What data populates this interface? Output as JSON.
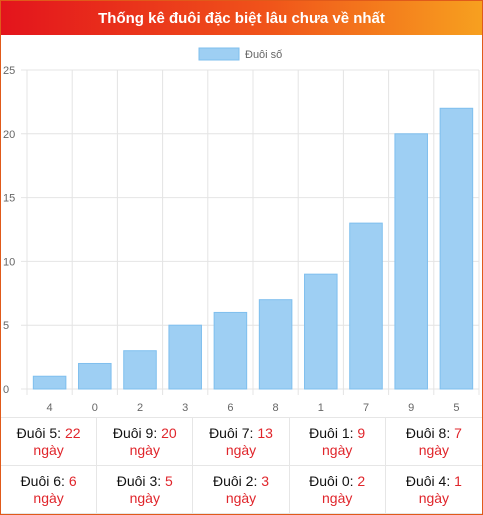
{
  "header": {
    "title": "Thống kê đuôi đặc biệt lâu chưa về nhất"
  },
  "colors": {
    "bar": "#9ecff3",
    "bar_border": "#7fbfee",
    "accent_red": "#e0252b"
  },
  "chart_data": {
    "type": "bar",
    "categories": [
      "4",
      "0",
      "2",
      "3",
      "6",
      "8",
      "1",
      "7",
      "9",
      "5"
    ],
    "series": [
      {
        "name": "Đuôi số",
        "values": [
          1,
          2,
          3,
          5,
          6,
          7,
          9,
          13,
          20,
          22
        ]
      }
    ],
    "ylim": [
      0,
      25
    ],
    "yticks": [
      0,
      5,
      10,
      15,
      20,
      25
    ],
    "legend_position": "top-center",
    "grid": true
  },
  "stats": {
    "prefix": "Đuôi",
    "unit": "ngày",
    "items": [
      {
        "digit": "5",
        "days": "22"
      },
      {
        "digit": "9",
        "days": "20"
      },
      {
        "digit": "7",
        "days": "13"
      },
      {
        "digit": "1",
        "days": "9"
      },
      {
        "digit": "8",
        "days": "7"
      },
      {
        "digit": "6",
        "days": "6"
      },
      {
        "digit": "3",
        "days": "5"
      },
      {
        "digit": "2",
        "days": "3"
      },
      {
        "digit": "0",
        "days": "2"
      },
      {
        "digit": "4",
        "days": "1"
      }
    ]
  }
}
